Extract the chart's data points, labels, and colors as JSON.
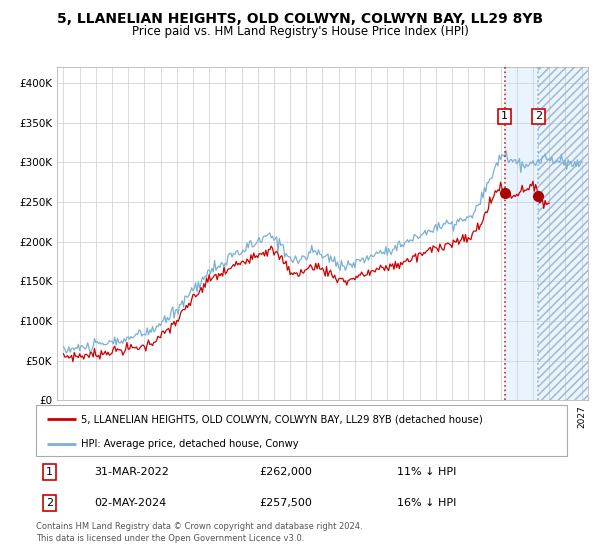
{
  "title": "5, LLANELIAN HEIGHTS, OLD COLWYN, COLWYN BAY, LL29 8YB",
  "subtitle": "Price paid vs. HM Land Registry's House Price Index (HPI)",
  "legend_red": "5, LLANELIAN HEIGHTS, OLD COLWYN, COLWYN BAY, LL29 8YB (detached house)",
  "legend_blue": "HPI: Average price, detached house, Conwy",
  "transaction1_date": "31-MAR-2022",
  "transaction1_price": 262000,
  "transaction1_note": "11% ↓ HPI",
  "transaction2_date": "02-MAY-2024",
  "transaction2_price": 257500,
  "transaction2_note": "16% ↓ HPI",
  "footer": "Contains HM Land Registry data © Crown copyright and database right 2024.\nThis data is licensed under the Open Government Licence v3.0.",
  "red_color": "#cc0000",
  "blue_color": "#7ab0d4",
  "marker_color": "#aa0000",
  "vline1_color": "#cc0000",
  "vline2_color": "#7ab0d4",
  "shade_color": "#ddeeff",
  "hatch_color": "#aabbcc",
  "grid_color": "#cccccc",
  "bg_color": "#ffffff",
  "ylim": [
    0,
    420000
  ],
  "yticks": [
    0,
    50000,
    100000,
    150000,
    200000,
    250000,
    300000,
    350000,
    400000
  ],
  "year_start": 1995,
  "year_end": 2027,
  "transaction1_year": 2022.25,
  "transaction2_year": 2024.33
}
